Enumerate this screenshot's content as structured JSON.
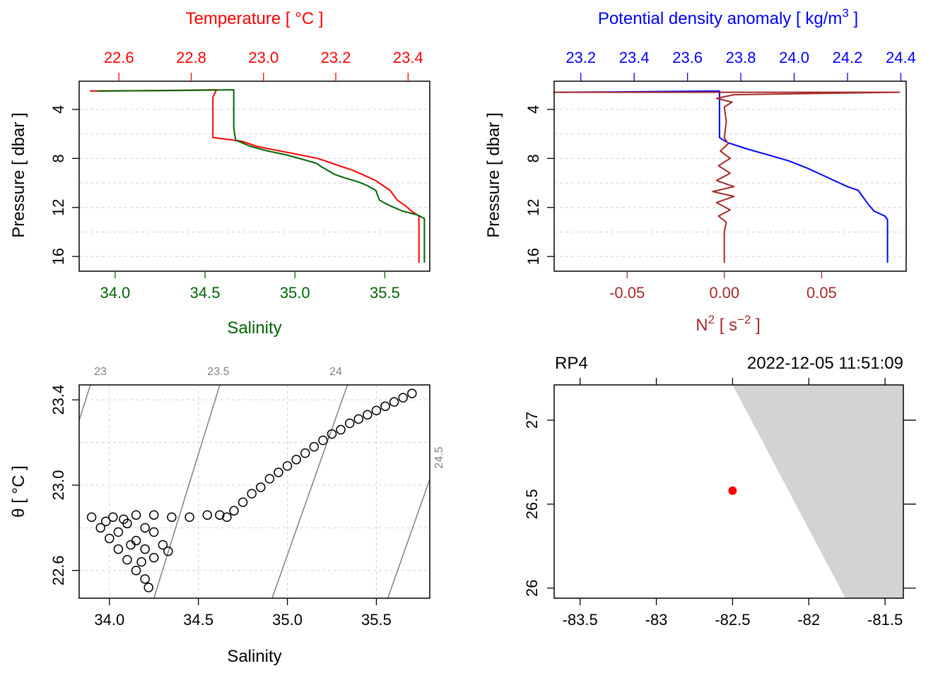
{
  "colors": {
    "salinity": "#006400",
    "temperature": "#ff0000",
    "density": "#0000ff",
    "n2": "#a52a2a",
    "station": "#ff0000",
    "isopycnal": "#808080",
    "land": "#d3d3d3",
    "grid": "#d3d3d3",
    "axis": "#000000"
  },
  "chart_data": [
    {
      "type": "line",
      "panel": "profile-salinity-temperature",
      "xlabel": "Salinity",
      "x2label": "Temperature [ °C ]",
      "ylabel": "Pressure [ dbar ]",
      "y_reversed": true,
      "ylim": [
        17.2,
        1.7
      ],
      "xlim": [
        33.8,
        35.75
      ],
      "x2lim": [
        22.49,
        23.46
      ],
      "xticks": [
        "34.0",
        "34.5",
        "35.0",
        "35.5"
      ],
      "x2ticks": [
        "22.6",
        "22.8",
        "23.0",
        "23.2",
        "23.4"
      ],
      "yticks": [
        "4",
        "8",
        "12",
        "16"
      ],
      "grid": true,
      "series": [
        {
          "name": "Salinity",
          "axis": "bottom",
          "color": "#006400",
          "points": [
            [
              33.9,
              2.5
            ],
            [
              34.4,
              2.45
            ],
            [
              34.66,
              2.4
            ],
            [
              34.66,
              3.5
            ],
            [
              34.66,
              4.5
            ],
            [
              34.66,
              5.5
            ],
            [
              34.67,
              6.5
            ],
            [
              34.75,
              7.0
            ],
            [
              34.85,
              7.4
            ],
            [
              34.95,
              7.7
            ],
            [
              35.05,
              8.1
            ],
            [
              35.12,
              8.4
            ],
            [
              35.15,
              8.7
            ],
            [
              35.22,
              9.3
            ],
            [
              35.28,
              9.6
            ],
            [
              35.35,
              9.9
            ],
            [
              35.4,
              10.2
            ],
            [
              35.45,
              10.6
            ],
            [
              35.46,
              11.0
            ],
            [
              35.47,
              11.4
            ],
            [
              35.52,
              11.8
            ],
            [
              35.6,
              12.3
            ],
            [
              35.68,
              12.6
            ],
            [
              35.72,
              12.9
            ],
            [
              35.72,
              14.0
            ],
            [
              35.72,
              15.5
            ],
            [
              35.72,
              16.5
            ]
          ]
        },
        {
          "name": "Temperature",
          "axis": "top",
          "color": "#ff0000",
          "points": [
            [
              22.52,
              2.5
            ],
            [
              22.75,
              2.45
            ],
            [
              22.87,
              2.4
            ],
            [
              22.86,
              3.0
            ],
            [
              22.86,
              4.0
            ],
            [
              22.86,
              5.0
            ],
            [
              22.86,
              6.0
            ],
            [
              22.86,
              6.3
            ],
            [
              22.89,
              6.4
            ],
            [
              22.94,
              6.6
            ],
            [
              22.98,
              7.0
            ],
            [
              23.03,
              7.3
            ],
            [
              23.1,
              7.7
            ],
            [
              23.15,
              8.0
            ],
            [
              23.2,
              8.5
            ],
            [
              23.25,
              9.0
            ],
            [
              23.28,
              9.4
            ],
            [
              23.31,
              9.8
            ],
            [
              23.33,
              10.2
            ],
            [
              23.35,
              10.6
            ],
            [
              23.36,
              11.0
            ],
            [
              23.37,
              11.4
            ],
            [
              23.39,
              11.8
            ],
            [
              23.41,
              12.3
            ],
            [
              23.43,
              12.7
            ],
            [
              23.43,
              14.0
            ],
            [
              23.43,
              15.5
            ],
            [
              23.43,
              16.5
            ]
          ]
        }
      ]
    },
    {
      "type": "line",
      "panel": "profile-density-n2",
      "xlabel": "N2 [ s-2 ]",
      "x2label": "Potential density anomaly [ kg/m3 ]",
      "ylabel": "Pressure [ dbar ]",
      "y_reversed": true,
      "ylim": [
        17.2,
        1.7
      ],
      "xlim": [
        -0.0875,
        0.0935
      ],
      "x2lim": [
        23.1,
        24.42
      ],
      "xticks": [
        "-0.05",
        "0.00",
        "0.05"
      ],
      "x2ticks": [
        "23.2",
        "23.4",
        "23.6",
        "23.8",
        "24.0",
        "24.2",
        "24.4"
      ],
      "yticks": [
        "4",
        "8",
        "12",
        "16"
      ],
      "grid": true,
      "series": [
        {
          "name": "Potential density anomaly",
          "axis": "top",
          "color": "#0000ff",
          "points": [
            [
              23.12,
              2.6
            ],
            [
              23.45,
              2.55
            ],
            [
              23.72,
              2.5
            ],
            [
              23.72,
              3.5
            ],
            [
              23.72,
              5.0
            ],
            [
              23.72,
              6.3
            ],
            [
              23.75,
              6.7
            ],
            [
              23.82,
              7.2
            ],
            [
              23.9,
              7.7
            ],
            [
              23.98,
              8.2
            ],
            [
              24.05,
              8.8
            ],
            [
              24.1,
              9.3
            ],
            [
              24.15,
              9.8
            ],
            [
              24.2,
              10.3
            ],
            [
              24.24,
              10.6
            ],
            [
              24.26,
              11.2
            ],
            [
              24.28,
              11.8
            ],
            [
              24.3,
              12.3
            ],
            [
              24.34,
              12.7
            ],
            [
              24.35,
              13.0
            ],
            [
              24.35,
              14.5
            ],
            [
              24.35,
              16.5
            ]
          ]
        },
        {
          "name": "N2",
          "axis": "bottom",
          "color": "#a52a2a",
          "points": [
            [
              -0.088,
              2.6
            ],
            [
              0.09,
              2.6
            ],
            [
              0.005,
              2.8
            ],
            [
              -0.004,
              3.1
            ],
            [
              0.004,
              3.4
            ],
            [
              0.0,
              3.8
            ],
            [
              0.001,
              5.0
            ],
            [
              0.0,
              6.3
            ],
            [
              0.002,
              6.8
            ],
            [
              -0.002,
              7.4
            ],
            [
              0.003,
              8.0
            ],
            [
              -0.003,
              8.6
            ],
            [
              0.003,
              9.2
            ],
            [
              -0.004,
              9.8
            ],
            [
              0.005,
              10.3
            ],
            [
              -0.006,
              10.7
            ],
            [
              0.005,
              11.1
            ],
            [
              -0.004,
              11.6
            ],
            [
              0.003,
              12.2
            ],
            [
              -0.003,
              12.7
            ],
            [
              0.001,
              13.2
            ],
            [
              0.0,
              14.0
            ],
            [
              0.0,
              15.5
            ],
            [
              0.0,
              16.5
            ]
          ]
        }
      ]
    },
    {
      "type": "scatter",
      "panel": "ts-diagram",
      "xlabel": "Salinity",
      "ylabel": "θ [ °C ]",
      "xlim": [
        33.83,
        35.8
      ],
      "ylim": [
        22.47,
        23.47
      ],
      "xticks": [
        "34.0",
        "34.5",
        "35.0",
        "35.5"
      ],
      "yticks": [
        "22.6",
        "23.0",
        "23.4"
      ],
      "grid": true,
      "isopycnals": [
        {
          "label": "23",
          "points": [
            [
              33.5,
              22.44
            ],
            [
              34.0,
              23.75
            ]
          ]
        },
        {
          "label": "23.5",
          "points": [
            [
              34.15,
              22.2
            ],
            [
              34.65,
              23.55
            ]
          ]
        },
        {
          "label": "24",
          "points": [
            [
              34.8,
              22.2
            ],
            [
              35.35,
              23.5
            ]
          ]
        },
        {
          "label": "24.5",
          "points": [
            [
              35.45,
              22.2
            ],
            [
              36.0,
              23.5
            ]
          ]
        }
      ],
      "points": [
        [
          33.9,
          22.85
        ],
        [
          34.02,
          22.85
        ],
        [
          34.15,
          22.86
        ],
        [
          34.25,
          22.86
        ],
        [
          34.35,
          22.85
        ],
        [
          34.45,
          22.85
        ],
        [
          34.55,
          22.86
        ],
        [
          34.62,
          22.86
        ],
        [
          34.66,
          22.85
        ],
        [
          34.7,
          22.88
        ],
        [
          34.75,
          22.92
        ],
        [
          34.8,
          22.96
        ],
        [
          34.85,
          22.99
        ],
        [
          34.9,
          23.03
        ],
        [
          34.95,
          23.06
        ],
        [
          35.0,
          23.09
        ],
        [
          35.05,
          23.12
        ],
        [
          35.1,
          23.15
        ],
        [
          35.15,
          23.18
        ],
        [
          35.2,
          23.21
        ],
        [
          35.25,
          23.24
        ],
        [
          35.3,
          23.26
        ],
        [
          35.35,
          23.29
        ],
        [
          35.4,
          23.31
        ],
        [
          35.45,
          23.33
        ],
        [
          35.5,
          23.35
        ],
        [
          35.55,
          23.37
        ],
        [
          35.6,
          23.39
        ],
        [
          35.65,
          23.41
        ],
        [
          35.7,
          23.43
        ],
        [
          33.95,
          22.8
        ],
        [
          34.0,
          22.75
        ],
        [
          34.05,
          22.7
        ],
        [
          34.1,
          22.65
        ],
        [
          34.15,
          22.6
        ],
        [
          34.2,
          22.56
        ],
        [
          34.22,
          22.52
        ],
        [
          34.1,
          22.82
        ],
        [
          34.15,
          22.74
        ],
        [
          34.2,
          22.7
        ],
        [
          34.25,
          22.66
        ],
        [
          34.3,
          22.72
        ],
        [
          34.33,
          22.69
        ],
        [
          34.2,
          22.8
        ],
        [
          34.25,
          22.78
        ],
        [
          34.05,
          22.78
        ],
        [
          34.12,
          22.72
        ],
        [
          34.18,
          22.64
        ],
        [
          34.08,
          22.84
        ],
        [
          33.98,
          22.83
        ]
      ]
    },
    {
      "type": "scatter",
      "panel": "station-map",
      "station_label": "RP4",
      "time_label": "2022-12-05 11:51:09",
      "xlim": [
        -83.67,
        -81.38
      ],
      "ylim": [
        25.94,
        27.21
      ],
      "xticks": [
        "-83.5",
        "-83",
        "-82.5",
        "-82",
        "-81.5"
      ],
      "yticks": [
        "26",
        "26.5",
        "27"
      ],
      "station": [
        -82.5,
        26.58
      ],
      "land_polygon": [
        [
          -82.5,
          27.21
        ],
        [
          -81.38,
          27.21
        ],
        [
          -81.38,
          25.94
        ],
        [
          -81.76,
          25.94
        ]
      ]
    }
  ]
}
